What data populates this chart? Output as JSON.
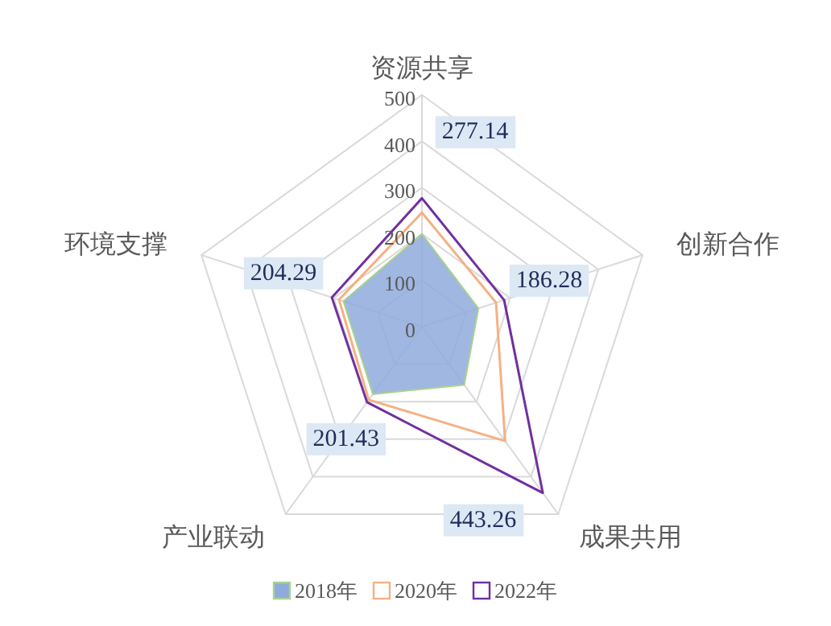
{
  "chart_data": {
    "type": "radar",
    "categories": [
      "资源共享",
      "创新合作",
      "成果共用",
      "产业联动",
      "环境支撑"
    ],
    "ylim": [
      0,
      500
    ],
    "yticks": [
      0,
      100,
      200,
      300,
      400,
      500
    ],
    "grid": true,
    "legend": "bottom",
    "series": [
      {
        "name": "2018年",
        "type": "area",
        "color": "#8faadc",
        "values": [
          200,
          128,
          155,
          180,
          178
        ]
      },
      {
        "name": "2020年",
        "color": "#f4b183",
        "values": [
          246,
          168,
          305,
          195,
          188
        ]
      },
      {
        "name": "2022年",
        "color": "#7030a0",
        "values": [
          277.14,
          186.28,
          443.26,
          201.43,
          204.29
        ],
        "value_labels": [
          "277.14",
          "186.28",
          "443.26",
          "201.43",
          "204.29"
        ]
      }
    ]
  }
}
